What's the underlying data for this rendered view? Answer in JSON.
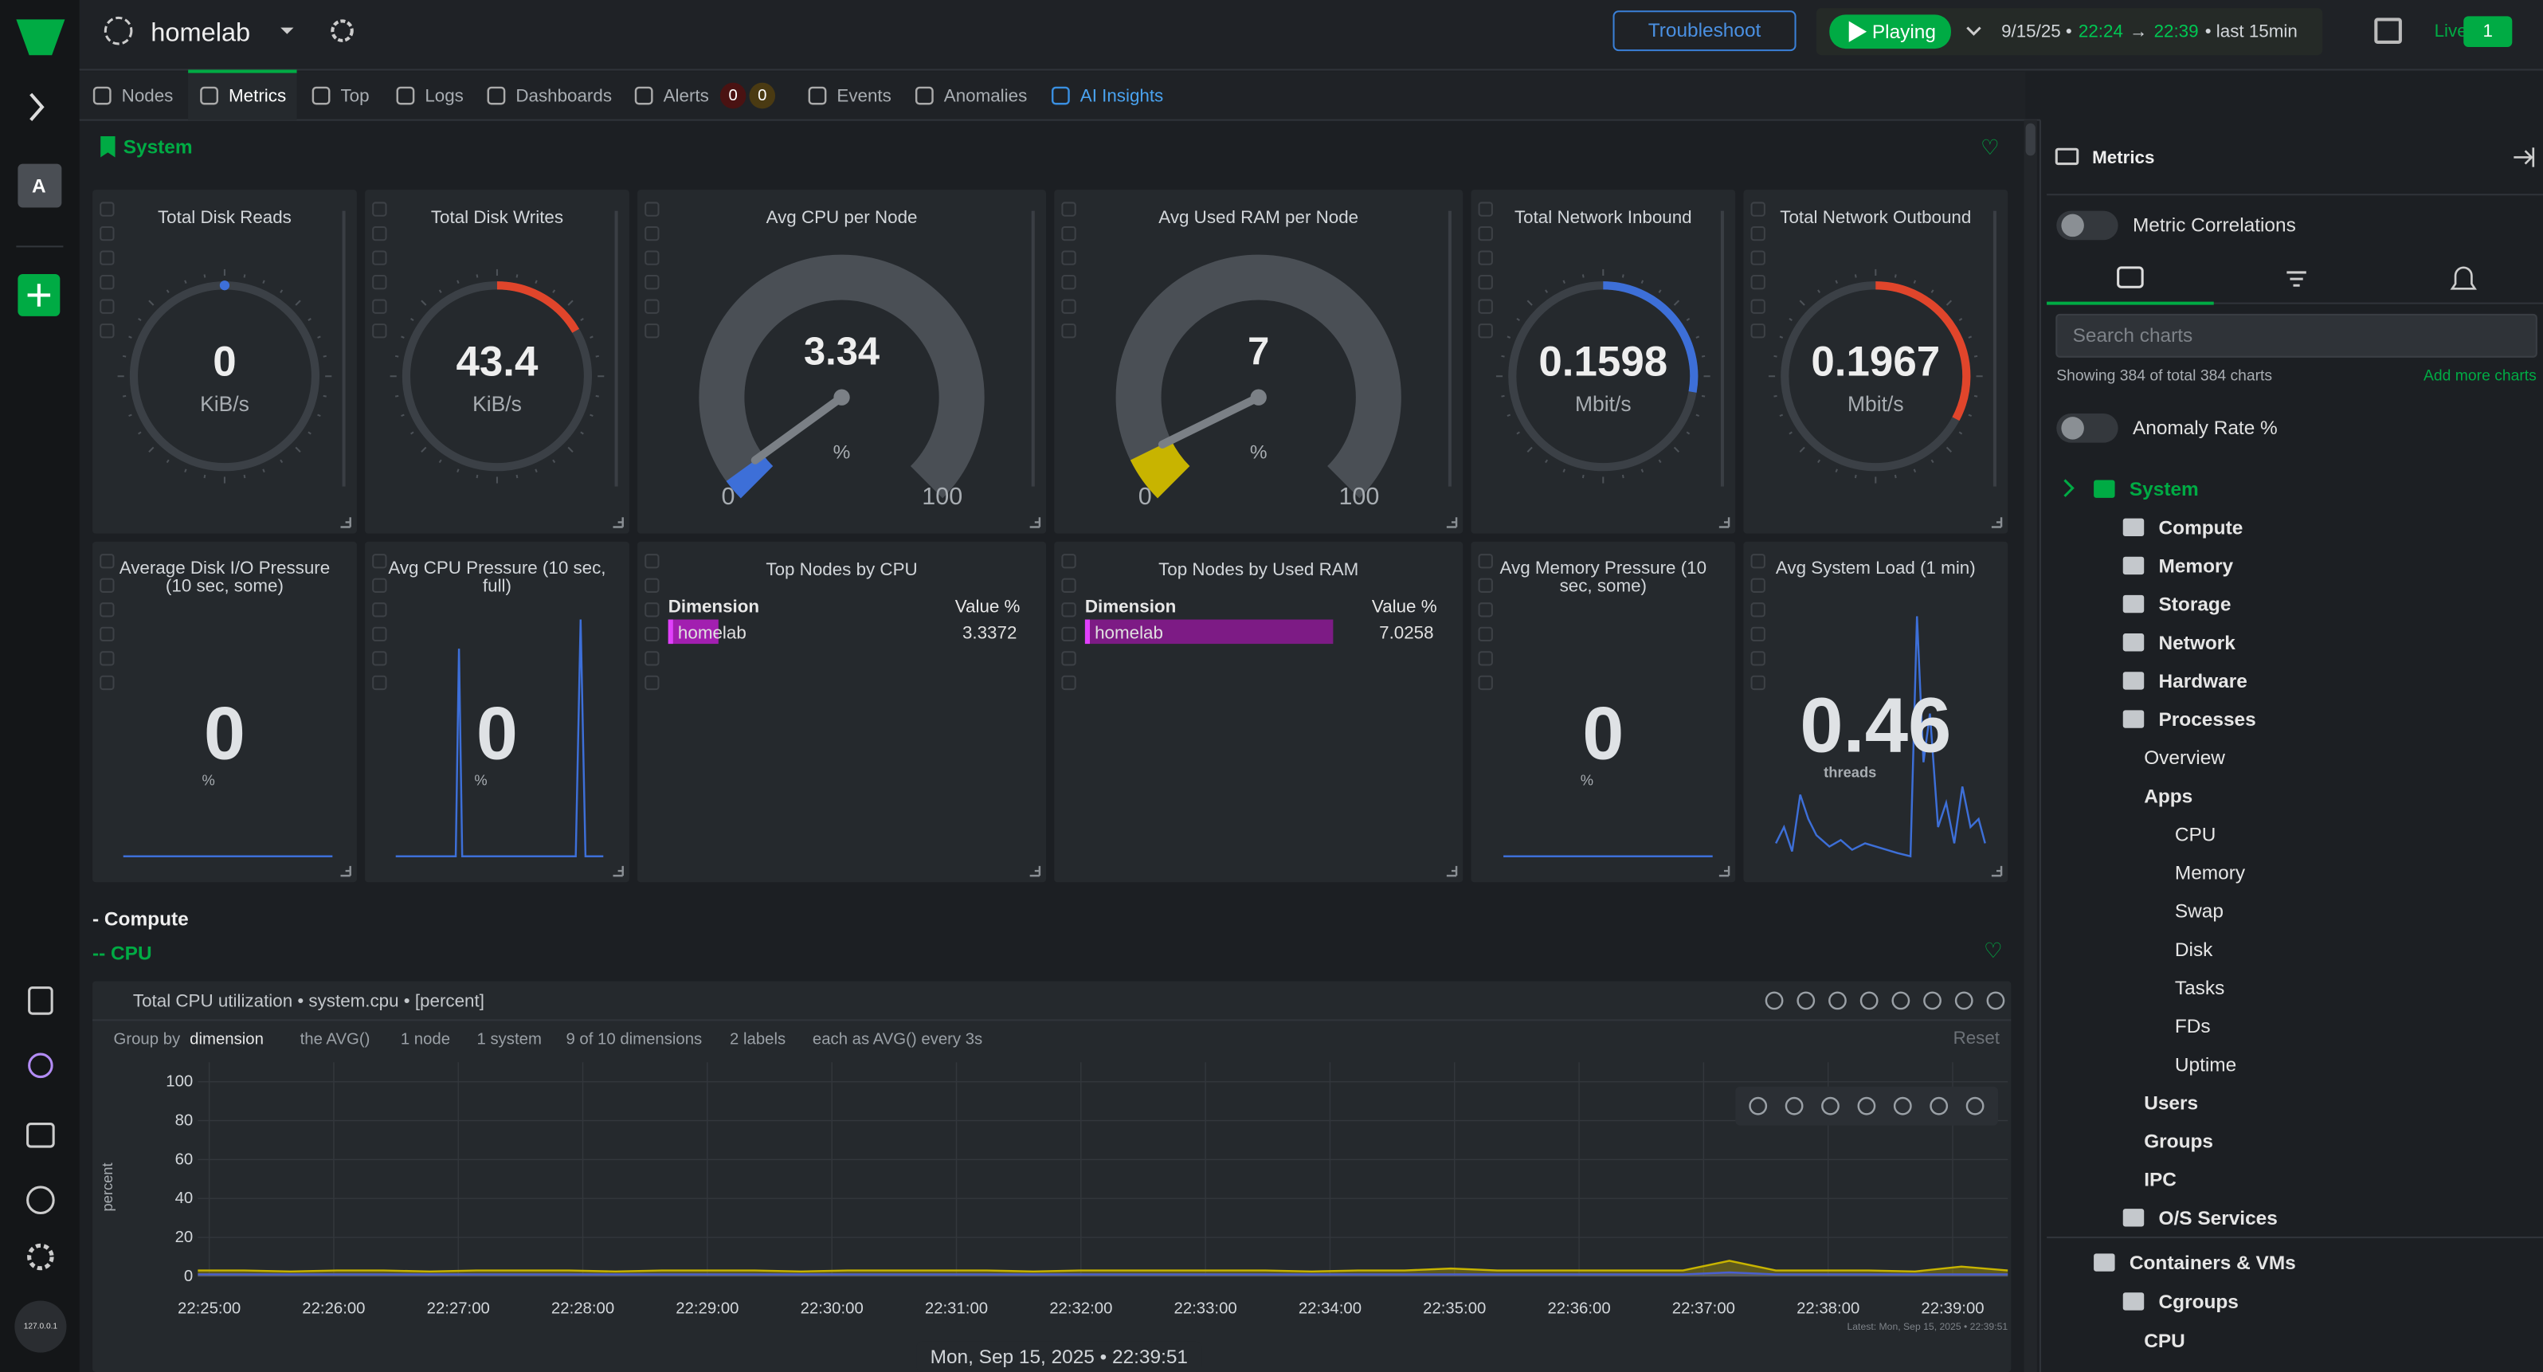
{
  "topbar": {
    "space": "homelab",
    "troubleshoot": "Troubleshoot",
    "playing": "Playing",
    "time_range": [
      "9/15/25 •",
      "22:24",
      "→",
      "22:39",
      "• last  15min"
    ],
    "live": "Live",
    "live_nodes": 1
  },
  "sidebar": {
    "avatar": "A",
    "node": "127.0.0.1"
  },
  "tabs": [
    "Nodes",
    "Metrics",
    "Top",
    "Logs",
    "Dashboards",
    "Alerts",
    "Events",
    "Anomalies",
    "AI Insights"
  ],
  "alert_counts": [
    0,
    0
  ],
  "section": "System",
  "gauges": [
    {
      "title": "Total Disk Reads",
      "value": 0,
      "unit": "KiB/s"
    },
    {
      "title": "Total Disk Writes",
      "value": 43.4,
      "unit": "KiB/s"
    },
    {
      "title": "Avg CPU per Node",
      "value": 3.34,
      "unit": "%",
      "min": 0,
      "max": 100
    },
    {
      "title": "Avg Used RAM per Node",
      "value": 7,
      "unit": "%",
      "min": 0,
      "max": 100
    },
    {
      "title": "Total Network Inbound",
      "value": 0.1598,
      "unit": "Mbit/s"
    },
    {
      "title": "Total Network Outbound",
      "value": 0.1967,
      "unit": "Mbit/s"
    }
  ],
  "stats": [
    {
      "title": [
        "Average Disk I/O Pressure",
        "(10 sec, some)"
      ],
      "value": 0,
      "unit": "%"
    },
    {
      "title": [
        "Avg CPU Pressure (10 sec,",
        "full)"
      ],
      "value": 0,
      "unit": "%"
    },
    {
      "title": [
        "Avg Memory Pressure (10",
        "sec, some)"
      ],
      "value": 0,
      "unit": "%"
    },
    {
      "title": [
        "Avg System Load (1 min)"
      ],
      "value": 0.46,
      "unit": "threads"
    }
  ],
  "top_nodes": [
    {
      "title": "Top Nodes by CPU",
      "columns": [
        "Dimension",
        "Value %"
      ],
      "rows": [
        [
          "homelab",
          3.3372
        ]
      ]
    },
    {
      "title": "Top Nodes by Used RAM",
      "columns": [
        "Dimension",
        "Value %"
      ],
      "rows": [
        [
          "homelab",
          7.0258
        ]
      ]
    }
  ],
  "subsections": [
    "- Compute",
    "-- CPU"
  ],
  "cpu_chart": {
    "title": "Total CPU utilization • system.cpu • [percent]",
    "controls": [
      "Group by",
      "dimension",
      "the AVG()",
      "1 node",
      "1 system",
      "9 of 10 dimensions",
      "2 labels",
      "each as AVG() every 3s"
    ],
    "reset": "Reset",
    "y_label": "percent",
    "ylim": [
      0,
      100
    ],
    "yticks": [
      0,
      20,
      40,
      60,
      80,
      100
    ],
    "xticks": [
      "22:25:00",
      "22:26:00",
      "22:27:00",
      "22:28:00",
      "22:29:00",
      "22:30:00",
      "22:31:00",
      "22:32:00",
      "22:33:00",
      "22:34:00",
      "22:35:00",
      "22:36:00",
      "22:37:00",
      "22:38:00",
      "22:39:00"
    ],
    "latest": "Latest: Mon, Sep 15, 2025 • 22:39:51",
    "series": [
      {
        "color": "#c8b400",
        "values": [
          3,
          3,
          2.5,
          3,
          3,
          2.5,
          3,
          3,
          3,
          2.5,
          3,
          3,
          3,
          2.5,
          3,
          3,
          3,
          3,
          2.5,
          3,
          3,
          3,
          3,
          3,
          2.5,
          3,
          3,
          4,
          3,
          3,
          3,
          3,
          3,
          8,
          3,
          3,
          3,
          2.5,
          5,
          3
        ]
      },
      {
        "color": "#4a5fd0",
        "values": [
          1,
          1,
          1,
          1,
          1,
          1,
          1,
          1,
          1,
          1,
          1,
          1,
          1,
          1,
          1,
          1,
          1,
          1,
          1,
          1,
          1,
          1,
          1,
          1,
          1,
          1,
          1,
          1,
          1,
          1,
          1,
          1,
          1,
          2,
          1,
          1,
          1,
          1,
          1,
          1
        ]
      }
    ]
  },
  "timestamp": "Mon, Sep 15, 2025 • 22:39:51",
  "panel": {
    "title": "Metrics",
    "metric_correlations": "Metric Correlations",
    "search_placeholder": "Search charts",
    "showing": "Showing 384 of total 384 charts",
    "add_more": "Add more charts",
    "anomaly_rate": "Anomaly Rate %",
    "tree": [
      "System",
      "Compute",
      "Memory",
      "Storage",
      "Network",
      "Hardware",
      "Processes",
      "Overview",
      "Apps",
      "CPU",
      "Memory",
      "Swap",
      "Disk",
      "Tasks",
      "FDs",
      "Uptime",
      "Users",
      "Groups",
      "IPC",
      "O/S Services",
      "Containers & VMs",
      "Cgroups",
      "CPU"
    ]
  }
}
